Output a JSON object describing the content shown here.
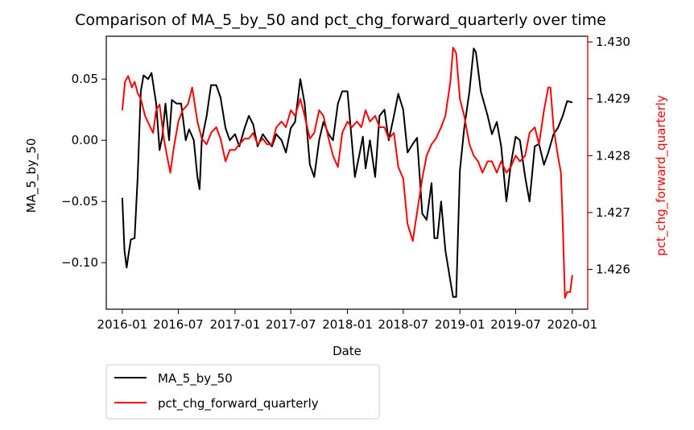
{
  "chart_data": {
    "type": "line",
    "title": "Comparison of MA_5_by_50 and pct_chg_forward_quarterly over time",
    "xlabel": "Date",
    "ylabel_left": "MA_5_by_50",
    "ylabel_right": "pct_chg_forward_quarterly",
    "x_range": [
      "2015-11-10",
      "2020-02-20"
    ],
    "x_ticks": [
      {
        "date": "2016-01-01",
        "label": "2016-01"
      },
      {
        "date": "2016-07-01",
        "label": "2016-07"
      },
      {
        "date": "2017-01-01",
        "label": "2017-01"
      },
      {
        "date": "2017-07-01",
        "label": "2017-07"
      },
      {
        "date": "2018-01-01",
        "label": "2018-01"
      },
      {
        "date": "2018-07-01",
        "label": "2018-07"
      },
      {
        "date": "2019-01-01",
        "label": "2019-01"
      },
      {
        "date": "2019-07-01",
        "label": "2019-07"
      },
      {
        "date": "2020-01-01",
        "label": "2020-01"
      }
    ],
    "ylim_left": [
      -0.138,
      0.085
    ],
    "yticks_left": [
      {
        "v": 0.05,
        "label": "0.05"
      },
      {
        "v": 0.0,
        "label": "0.00"
      },
      {
        "v": -0.05,
        "label": "−0.05"
      },
      {
        "v": -0.1,
        "label": "−0.10"
      }
    ],
    "ylim_right": [
      1.4253,
      1.4301
    ],
    "yticks_right": [
      {
        "v": 1.43,
        "label": "1.430"
      },
      {
        "v": 1.429,
        "label": "1.429"
      },
      {
        "v": 1.428,
        "label": "1.428"
      },
      {
        "v": 1.427,
        "label": "1.427"
      },
      {
        "v": 1.426,
        "label": "1.426"
      }
    ],
    "grid": false,
    "legend_position": "below-left",
    "series": [
      {
        "name": "MA_5_by_50",
        "axis": "left",
        "color": "#000000",
        "points": [
          [
            "2016-01-01",
            -0.047
          ],
          [
            "2016-01-08",
            -0.09
          ],
          [
            "2016-01-15",
            -0.104
          ],
          [
            "2016-01-22",
            -0.092
          ],
          [
            "2016-01-29",
            -0.081
          ],
          [
            "2016-02-10",
            -0.08
          ],
          [
            "2016-02-20",
            -0.03
          ],
          [
            "2016-03-01",
            0.04
          ],
          [
            "2016-03-10",
            0.053
          ],
          [
            "2016-03-25",
            0.05
          ],
          [
            "2016-04-05",
            0.055
          ],
          [
            "2016-04-20",
            0.03
          ],
          [
            "2016-05-01",
            -0.008
          ],
          [
            "2016-05-10",
            0.003
          ],
          [
            "2016-05-20",
            0.03
          ],
          [
            "2016-06-01",
            0.0
          ],
          [
            "2016-06-10",
            0.033
          ],
          [
            "2016-06-25",
            0.03
          ],
          [
            "2016-07-10",
            0.03
          ],
          [
            "2016-07-25",
            0.0
          ],
          [
            "2016-08-05",
            0.009
          ],
          [
            "2016-08-20",
            0.0
          ],
          [
            "2016-09-01",
            -0.03
          ],
          [
            "2016-09-08",
            -0.04
          ],
          [
            "2016-09-15",
            0.0
          ],
          [
            "2016-10-01",
            0.02
          ],
          [
            "2016-10-15",
            0.045
          ],
          [
            "2016-11-01",
            0.045
          ],
          [
            "2016-11-15",
            0.035
          ],
          [
            "2016-12-01",
            0.01
          ],
          [
            "2016-12-15",
            0.0
          ],
          [
            "2017-01-01",
            0.005
          ],
          [
            "2017-01-15",
            -0.005
          ],
          [
            "2017-02-01",
            0.01
          ],
          [
            "2017-02-15",
            0.02
          ],
          [
            "2017-03-01",
            0.013
          ],
          [
            "2017-03-15",
            -0.005
          ],
          [
            "2017-04-01",
            0.005
          ],
          [
            "2017-04-15",
            0.0
          ],
          [
            "2017-05-01",
            -0.005
          ],
          [
            "2017-05-15",
            0.005
          ],
          [
            "2017-06-01",
            0.0
          ],
          [
            "2017-06-15",
            -0.01
          ],
          [
            "2017-07-01",
            0.01
          ],
          [
            "2017-07-15",
            0.015
          ],
          [
            "2017-08-01",
            0.05
          ],
          [
            "2017-08-15",
            0.03
          ],
          [
            "2017-09-01",
            -0.02
          ],
          [
            "2017-09-15",
            -0.03
          ],
          [
            "2017-10-01",
            0.0
          ],
          [
            "2017-10-15",
            0.015
          ],
          [
            "2017-11-01",
            0.005
          ],
          [
            "2017-11-15",
            0.0
          ],
          [
            "2017-12-01",
            0.03
          ],
          [
            "2017-12-15",
            0.04
          ],
          [
            "2018-01-01",
            0.04
          ],
          [
            "2018-01-15",
            0.0
          ],
          [
            "2018-01-25",
            -0.03
          ],
          [
            "2018-02-10",
            -0.01
          ],
          [
            "2018-02-20",
            0.003
          ],
          [
            "2018-03-01",
            -0.023
          ],
          [
            "2018-03-15",
            0.0
          ],
          [
            "2018-04-01",
            -0.03
          ],
          [
            "2018-04-15",
            0.02
          ],
          [
            "2018-05-01",
            0.025
          ],
          [
            "2018-05-15",
            0.0
          ],
          [
            "2018-06-01",
            0.02
          ],
          [
            "2018-06-15",
            0.038
          ],
          [
            "2018-07-01",
            0.025
          ],
          [
            "2018-07-15",
            -0.01
          ],
          [
            "2018-08-01",
            -0.003
          ],
          [
            "2018-08-15",
            0.002
          ],
          [
            "2018-09-01",
            -0.06
          ],
          [
            "2018-09-15",
            -0.065
          ],
          [
            "2018-10-01",
            -0.035
          ],
          [
            "2018-10-10",
            -0.08
          ],
          [
            "2018-10-20",
            -0.08
          ],
          [
            "2018-11-01",
            -0.05
          ],
          [
            "2018-11-15",
            -0.09
          ],
          [
            "2018-12-01",
            -0.115
          ],
          [
            "2018-12-10",
            -0.128
          ],
          [
            "2018-12-20",
            -0.128
          ],
          [
            "2019-01-01",
            -0.025
          ],
          [
            "2019-01-15",
            0.01
          ],
          [
            "2019-02-01",
            0.04
          ],
          [
            "2019-02-15",
            0.075
          ],
          [
            "2019-02-22",
            0.072
          ],
          [
            "2019-03-10",
            0.04
          ],
          [
            "2019-04-01",
            0.02
          ],
          [
            "2019-04-15",
            0.005
          ],
          [
            "2019-05-01",
            0.015
          ],
          [
            "2019-05-15",
            -0.005
          ],
          [
            "2019-06-01",
            -0.05
          ],
          [
            "2019-06-15",
            -0.02
          ],
          [
            "2019-07-01",
            0.003
          ],
          [
            "2019-07-15",
            0.0
          ],
          [
            "2019-08-01",
            -0.03
          ],
          [
            "2019-08-15",
            -0.05
          ],
          [
            "2019-09-01",
            -0.005
          ],
          [
            "2019-09-15",
            -0.003
          ],
          [
            "2019-10-01",
            -0.02
          ],
          [
            "2019-10-15",
            -0.01
          ],
          [
            "2019-11-01",
            0.005
          ],
          [
            "2019-11-15",
            0.01
          ],
          [
            "2019-12-01",
            0.02
          ],
          [
            "2019-12-15",
            0.032
          ],
          [
            "2020-01-01",
            0.031
          ]
        ]
      },
      {
        "name": "pct_chg_forward_quarterly",
        "axis": "right",
        "color": "#ff0000",
        "points": [
          [
            "2016-01-01",
            1.4288
          ],
          [
            "2016-01-10",
            1.4293
          ],
          [
            "2016-01-20",
            1.4294
          ],
          [
            "2016-02-01",
            1.4292
          ],
          [
            "2016-02-10",
            1.4293
          ],
          [
            "2016-02-20",
            1.4291
          ],
          [
            "2016-03-01",
            1.429
          ],
          [
            "2016-03-15",
            1.4287
          ],
          [
            "2016-04-01",
            1.4285
          ],
          [
            "2016-04-10",
            1.4284
          ],
          [
            "2016-04-20",
            1.4288
          ],
          [
            "2016-05-01",
            1.4289
          ],
          [
            "2016-05-15",
            1.4283
          ],
          [
            "2016-05-25",
            1.428
          ],
          [
            "2016-06-05",
            1.4277
          ],
          [
            "2016-06-15",
            1.4281
          ],
          [
            "2016-07-01",
            1.4286
          ],
          [
            "2016-07-15",
            1.4288
          ],
          [
            "2016-08-01",
            1.4289
          ],
          [
            "2016-08-15",
            1.4292
          ],
          [
            "2016-09-01",
            1.4286
          ],
          [
            "2016-09-15",
            1.4283
          ],
          [
            "2016-10-01",
            1.4282
          ],
          [
            "2016-10-15",
            1.4284
          ],
          [
            "2016-11-01",
            1.4285
          ],
          [
            "2016-11-15",
            1.4283
          ],
          [
            "2016-12-01",
            1.4279
          ],
          [
            "2016-12-15",
            1.4281
          ],
          [
            "2017-01-01",
            1.4281
          ],
          [
            "2017-01-15",
            1.4282
          ],
          [
            "2017-02-01",
            1.4283
          ],
          [
            "2017-02-15",
            1.4283
          ],
          [
            "2017-03-01",
            1.4284
          ],
          [
            "2017-03-15",
            1.4282
          ],
          [
            "2017-04-01",
            1.4283
          ],
          [
            "2017-04-15",
            1.4282
          ],
          [
            "2017-05-01",
            1.4282
          ],
          [
            "2017-05-15",
            1.4285
          ],
          [
            "2017-06-01",
            1.4286
          ],
          [
            "2017-06-15",
            1.4285
          ],
          [
            "2017-07-01",
            1.4288
          ],
          [
            "2017-07-15",
            1.4287
          ],
          [
            "2017-08-01",
            1.429
          ],
          [
            "2017-08-15",
            1.4287
          ],
          [
            "2017-09-01",
            1.4283
          ],
          [
            "2017-09-15",
            1.4284
          ],
          [
            "2017-10-01",
            1.4288
          ],
          [
            "2017-10-15",
            1.4287
          ],
          [
            "2017-11-01",
            1.4283
          ],
          [
            "2017-11-15",
            1.428
          ],
          [
            "2017-12-01",
            1.4278
          ],
          [
            "2017-12-15",
            1.4284
          ],
          [
            "2018-01-01",
            1.4286
          ],
          [
            "2018-01-15",
            1.4285
          ],
          [
            "2018-02-01",
            1.4286
          ],
          [
            "2018-02-15",
            1.4285
          ],
          [
            "2018-03-01",
            1.4288
          ],
          [
            "2018-03-15",
            1.4286
          ],
          [
            "2018-04-01",
            1.4287
          ],
          [
            "2018-04-15",
            1.4285
          ],
          [
            "2018-05-01",
            1.4285
          ],
          [
            "2018-05-15",
            1.4283
          ],
          [
            "2018-06-01",
            1.4284
          ],
          [
            "2018-06-15",
            1.4278
          ],
          [
            "2018-07-01",
            1.4276
          ],
          [
            "2018-07-15",
            1.4268
          ],
          [
            "2018-08-01",
            1.4265
          ],
          [
            "2018-08-15",
            1.427
          ],
          [
            "2018-09-01",
            1.4276
          ],
          [
            "2018-09-15",
            1.428
          ],
          [
            "2018-10-01",
            1.4282
          ],
          [
            "2018-10-15",
            1.4283
          ],
          [
            "2018-11-01",
            1.4285
          ],
          [
            "2018-11-15",
            1.4287
          ],
          [
            "2018-12-01",
            1.4293
          ],
          [
            "2018-12-10",
            1.4299
          ],
          [
            "2018-12-20",
            1.4298
          ],
          [
            "2019-01-01",
            1.429
          ],
          [
            "2019-01-15",
            1.4287
          ],
          [
            "2019-02-01",
            1.4282
          ],
          [
            "2019-02-15",
            1.428
          ],
          [
            "2019-03-01",
            1.4279
          ],
          [
            "2019-03-15",
            1.4277
          ],
          [
            "2019-04-01",
            1.4279
          ],
          [
            "2019-04-15",
            1.4279
          ],
          [
            "2019-05-01",
            1.4277
          ],
          [
            "2019-05-15",
            1.4279
          ],
          [
            "2019-06-01",
            1.4277
          ],
          [
            "2019-06-15",
            1.4278
          ],
          [
            "2019-07-01",
            1.428
          ],
          [
            "2019-07-15",
            1.4279
          ],
          [
            "2019-08-01",
            1.428
          ],
          [
            "2019-08-15",
            1.4284
          ],
          [
            "2019-09-01",
            1.4285
          ],
          [
            "2019-09-15",
            1.4282
          ],
          [
            "2019-10-01",
            1.4288
          ],
          [
            "2019-10-15",
            1.4292
          ],
          [
            "2019-10-22",
            1.4292
          ],
          [
            "2019-11-01",
            1.4285
          ],
          [
            "2019-11-15",
            1.428
          ],
          [
            "2019-11-25",
            1.4277
          ],
          [
            "2019-12-01",
            1.4268
          ],
          [
            "2019-12-08",
            1.4255
          ],
          [
            "2019-12-15",
            1.4256
          ],
          [
            "2019-12-25",
            1.4256
          ],
          [
            "2020-01-01",
            1.4259
          ]
        ]
      }
    ]
  }
}
